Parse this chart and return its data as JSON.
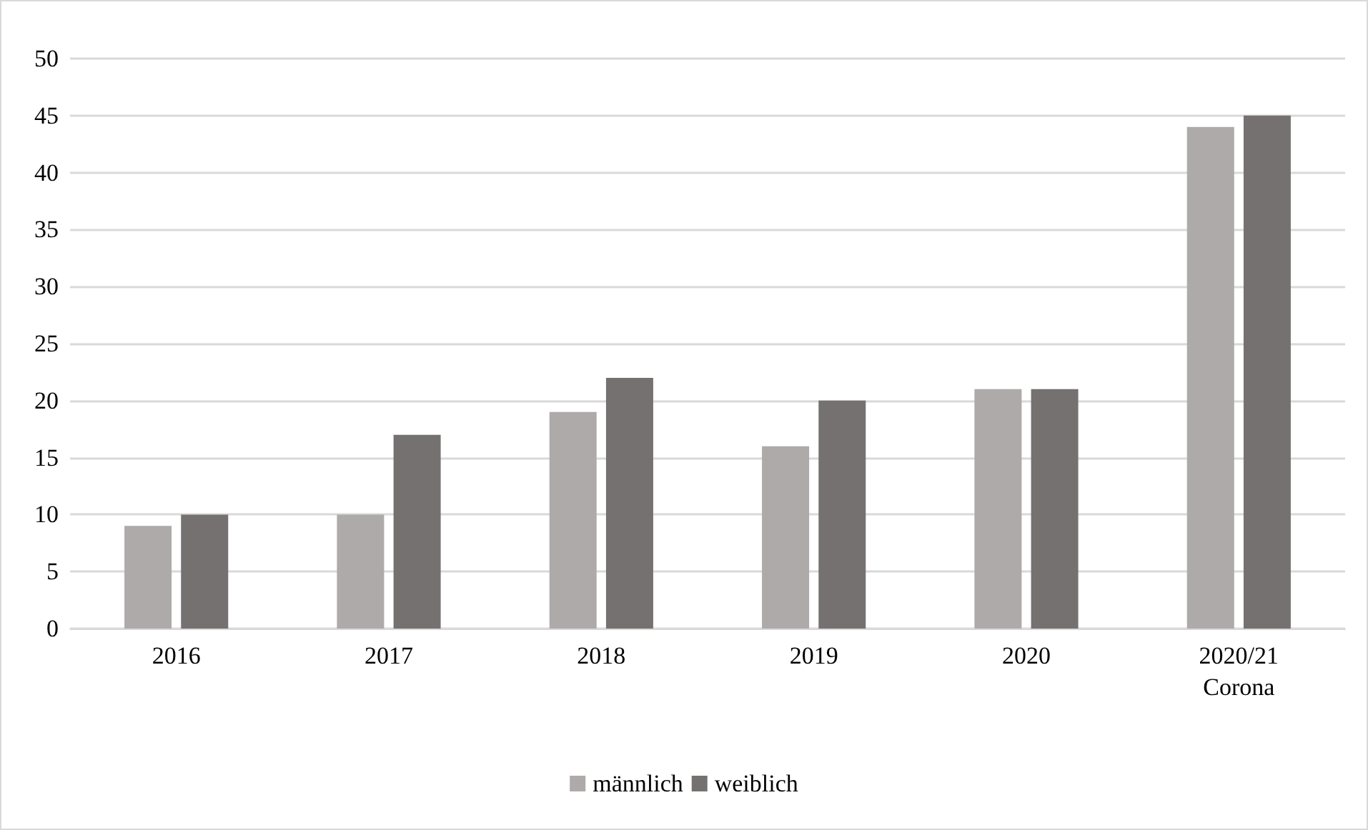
{
  "chart_data": {
    "type": "bar",
    "categories": [
      "2016",
      "2017",
      "2018",
      "2019",
      "2020",
      "2020/21\nCorona"
    ],
    "series": [
      {
        "name": "männlich",
        "color": "#aeaaaa",
        "values": [
          9,
          10,
          19,
          16,
          21,
          44
        ]
      },
      {
        "name": "weiblich",
        "color": "#767171",
        "values": [
          10,
          17,
          22,
          20,
          21,
          45
        ]
      }
    ],
    "ylim": [
      0,
      50
    ],
    "yticks": [
      0,
      5,
      10,
      15,
      20,
      25,
      30,
      35,
      40,
      45,
      50
    ],
    "grid": "y",
    "legend": "bottom"
  }
}
